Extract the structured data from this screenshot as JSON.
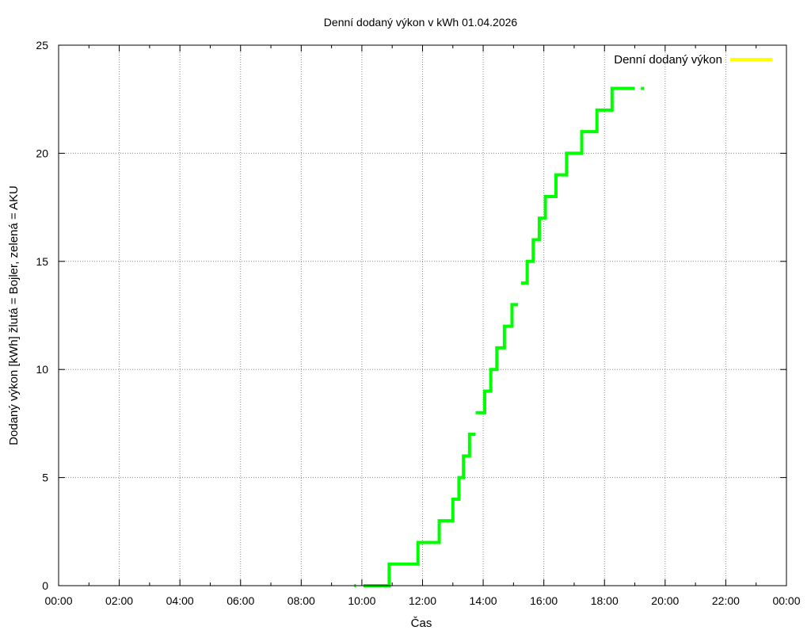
{
  "chart_data": {
    "type": "line",
    "title": "Denní dodaný výkon v kWh 01.04.2026",
    "xlabel": "Čas",
    "ylabel": "Dodaný výkon [kWh]  žlutá = Bojler, zelená = AKU",
    "xlim": [
      0,
      24
    ],
    "ylim": [
      0,
      25
    ],
    "x_ticks": [
      "00:00",
      "02:00",
      "04:00",
      "06:00",
      "08:00",
      "10:00",
      "12:00",
      "14:00",
      "16:00",
      "18:00",
      "20:00",
      "22:00",
      "00:00"
    ],
    "y_ticks": [
      "0",
      "5",
      "10",
      "15",
      "20",
      "25"
    ],
    "grid": true,
    "legend_position": "top-right",
    "series": [
      {
        "name": "Denní dodaný výkon",
        "color": "#ffff00",
        "style": "line",
        "values": []
      },
      {
        "name": "",
        "color": "#00ff00",
        "style": "step",
        "segments": [
          [
            [
              9.75,
              0
            ],
            [
              9.8,
              0
            ]
          ],
          [
            [
              10.05,
              0
            ],
            [
              10.9,
              0
            ],
            [
              10.9,
              1
            ],
            [
              11.85,
              1
            ],
            [
              11.85,
              2
            ],
            [
              12.55,
              2
            ],
            [
              12.55,
              3
            ],
            [
              13.0,
              3
            ],
            [
              13.0,
              4
            ],
            [
              13.2,
              4
            ],
            [
              13.2,
              5
            ],
            [
              13.35,
              5
            ],
            [
              13.35,
              6
            ],
            [
              13.55,
              6
            ],
            [
              13.55,
              7
            ],
            [
              13.75,
              7
            ]
          ],
          [
            [
              13.75,
              8
            ],
            [
              14.05,
              8
            ],
            [
              14.05,
              9
            ],
            [
              14.25,
              9
            ],
            [
              14.25,
              10
            ],
            [
              14.45,
              10
            ],
            [
              14.45,
              11
            ],
            [
              14.7,
              11
            ],
            [
              14.7,
              12
            ],
            [
              14.95,
              12
            ],
            [
              14.95,
              13
            ],
            [
              15.15,
              13
            ]
          ],
          [
            [
              15.25,
              14
            ],
            [
              15.45,
              14
            ],
            [
              15.45,
              15
            ],
            [
              15.65,
              15
            ],
            [
              15.65,
              16
            ],
            [
              15.85,
              16
            ],
            [
              15.85,
              17
            ],
            [
              16.05,
              17
            ],
            [
              16.05,
              18
            ],
            [
              16.4,
              18
            ],
            [
              16.4,
              19
            ],
            [
              16.75,
              19
            ],
            [
              16.75,
              20
            ],
            [
              17.25,
              20
            ],
            [
              17.25,
              21
            ],
            [
              17.75,
              21
            ],
            [
              17.75,
              22
            ],
            [
              18.25,
              22
            ],
            [
              18.25,
              23
            ],
            [
              19.0,
              23
            ]
          ],
          [
            [
              19.2,
              23
            ],
            [
              19.3,
              23
            ]
          ]
        ]
      }
    ]
  }
}
